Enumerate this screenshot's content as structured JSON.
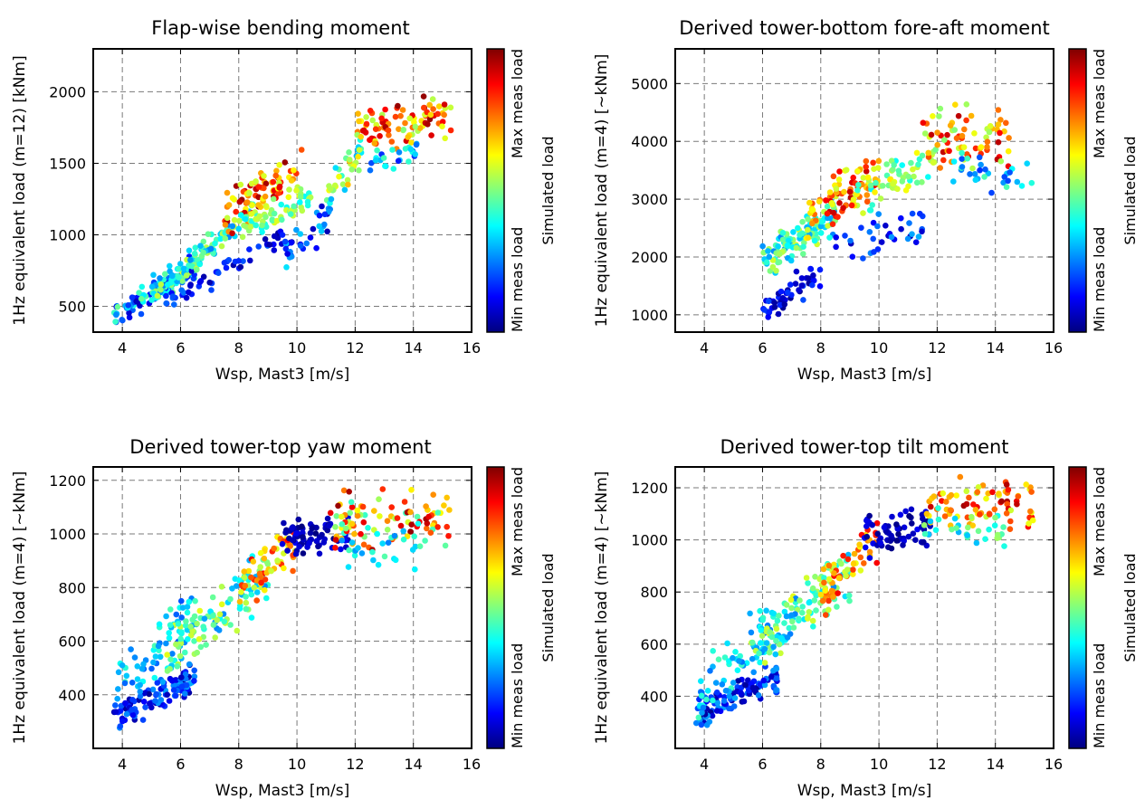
{
  "colors": {
    "colormap": [
      "#00007f",
      "#0000ff",
      "#007fff",
      "#00ffff",
      "#7fff7f",
      "#ffff00",
      "#ff7f00",
      "#ff0000",
      "#7f0000"
    ],
    "grid": "#7a7a7a"
  },
  "chart_data": [
    {
      "type": "scatter",
      "title": "Flap-wise bending moment",
      "xlabel": "Wsp, Mast3 [m/s]",
      "ylabel": "1Hz equivalent load (m=12) [kNm]",
      "xlim": [
        3,
        16
      ],
      "ylim": [
        320,
        2300
      ],
      "xticks": [
        4,
        6,
        8,
        10,
        12,
        14,
        16
      ],
      "yticks": [
        500,
        1000,
        1500,
        2000
      ],
      "grid": true,
      "colorbar": {
        "label": "Simulated load",
        "top_label": "Max meas load",
        "bottom_label": "Min meas load"
      },
      "clusters": [
        {
          "x_range": [
            3.7,
            6.5
          ],
          "y_at_x_lo": 430,
          "y_at_x_hi": 760,
          "spread": 140,
          "c_lo": 0.05,
          "c_hi": 0.55,
          "n": 110
        },
        {
          "x_range": [
            5.0,
            8.5
          ],
          "y_at_x_lo": 600,
          "y_at_x_hi": 1150,
          "spread": 170,
          "c_lo": 0.25,
          "c_hi": 0.6,
          "n": 110
        },
        {
          "x_range": [
            5.5,
            9.5
          ],
          "y_at_x_lo": 520,
          "y_at_x_hi": 1000,
          "spread": 120,
          "c_lo": 0.02,
          "c_hi": 0.25,
          "n": 50
        },
        {
          "x_range": [
            7.5,
            10.2
          ],
          "y_at_x_lo": 1150,
          "y_at_x_hi": 1450,
          "spread": 260,
          "c_lo": 0.55,
          "c_hi": 0.98,
          "n": 90
        },
        {
          "x_range": [
            8.0,
            10.5
          ],
          "y_at_x_lo": 1050,
          "y_at_x_hi": 1250,
          "spread": 180,
          "c_lo": 0.35,
          "c_hi": 0.6,
          "n": 60
        },
        {
          "x_range": [
            9.5,
            11.2
          ],
          "y_at_x_lo": 850,
          "y_at_x_hi": 1150,
          "spread": 200,
          "c_lo": 0.05,
          "c_hi": 0.35,
          "n": 35
        },
        {
          "x_range": [
            11.0,
            12.3
          ],
          "y_at_x_lo": 1250,
          "y_at_x_hi": 1650,
          "spread": 220,
          "c_lo": 0.3,
          "c_hi": 0.7,
          "n": 35
        },
        {
          "x_range": [
            12.0,
            15.3
          ],
          "y_at_x_lo": 1750,
          "y_at_x_hi": 1800,
          "spread": 260,
          "c_lo": 0.5,
          "c_hi": 0.98,
          "n": 90
        },
        {
          "x_range": [
            12.5,
            14.3
          ],
          "y_at_x_lo": 1500,
          "y_at_x_hi": 1600,
          "spread": 200,
          "c_lo": 0.15,
          "c_hi": 0.45,
          "n": 25
        }
      ]
    },
    {
      "type": "scatter",
      "title": "Derived tower-bottom fore-aft moment",
      "xlabel": "Wsp, Mast3 [m/s]",
      "ylabel": "1Hz equivalent load (m=4) [~kNm]",
      "xlim": [
        3,
        16
      ],
      "ylim": [
        700,
        5600
      ],
      "xticks": [
        4,
        6,
        8,
        10,
        12,
        14,
        16
      ],
      "yticks": [
        1000,
        2000,
        3000,
        4000,
        5000
      ],
      "grid": true,
      "colorbar": {
        "label": "Simulated load",
        "top_label": "Max meas load",
        "bottom_label": "Min meas load"
      },
      "clusters": [
        {
          "x_range": [
            6.0,
            8.0
          ],
          "y_at_x_lo": 1100,
          "y_at_x_hi": 1700,
          "spread": 400,
          "c_lo": 0.02,
          "c_hi": 0.2,
          "n": 50
        },
        {
          "x_range": [
            6.0,
            8.5
          ],
          "y_at_x_lo": 1900,
          "y_at_x_hi": 2700,
          "spread": 500,
          "c_lo": 0.25,
          "c_hi": 0.6,
          "n": 110
        },
        {
          "x_range": [
            7.5,
            10.0
          ],
          "y_at_x_lo": 2700,
          "y_at_x_hi": 3400,
          "spread": 700,
          "c_lo": 0.55,
          "c_hi": 0.95,
          "n": 90
        },
        {
          "x_range": [
            8.5,
            11.5
          ],
          "y_at_x_lo": 2200,
          "y_at_x_hi": 2600,
          "spread": 600,
          "c_lo": 0.05,
          "c_hi": 0.3,
          "n": 35
        },
        {
          "x_range": [
            9.0,
            12.0
          ],
          "y_at_x_lo": 3000,
          "y_at_x_hi": 3700,
          "spread": 600,
          "c_lo": 0.35,
          "c_hi": 0.65,
          "n": 60
        },
        {
          "x_range": [
            11.5,
            14.5
          ],
          "y_at_x_lo": 4100,
          "y_at_x_hi": 4000,
          "spread": 900,
          "c_lo": 0.5,
          "c_hi": 0.95,
          "n": 70
        },
        {
          "x_range": [
            12.5,
            15.3
          ],
          "y_at_x_lo": 3600,
          "y_at_x_hi": 3200,
          "spread": 600,
          "c_lo": 0.15,
          "c_hi": 0.45,
          "n": 30
        }
      ]
    },
    {
      "type": "scatter",
      "title": "Derived tower-top yaw moment",
      "xlabel": "Wsp, Mast3 [m/s]",
      "ylabel": "1Hz equivalent load (m=4) [~kNm]",
      "xlim": [
        3,
        16
      ],
      "ylim": [
        200,
        1250
      ],
      "xticks": [
        4,
        6,
        8,
        10,
        12,
        14,
        16
      ],
      "yticks": [
        400,
        600,
        800,
        1000,
        1200
      ],
      "grid": true,
      "colorbar": {
        "label": "Simulated load",
        "top_label": "Max meas load",
        "bottom_label": "Min meas load"
      },
      "clusters": [
        {
          "x_range": [
            3.7,
            6.5
          ],
          "y_at_x_lo": 320,
          "y_at_x_hi": 470,
          "spread": 100,
          "c_lo": 0.02,
          "c_hi": 0.3,
          "n": 110
        },
        {
          "x_range": [
            3.8,
            6.5
          ],
          "y_at_x_lo": 420,
          "y_at_x_hi": 700,
          "spread": 200,
          "c_lo": 0.2,
          "c_hi": 0.45,
          "n": 60
        },
        {
          "x_range": [
            5.5,
            9.0
          ],
          "y_at_x_lo": 550,
          "y_at_x_hi": 850,
          "spread": 180,
          "c_lo": 0.25,
          "c_hi": 0.6,
          "n": 120
        },
        {
          "x_range": [
            8.0,
            10.0
          ],
          "y_at_x_lo": 780,
          "y_at_x_hi": 980,
          "spread": 160,
          "c_lo": 0.55,
          "c_hi": 0.9,
          "n": 60
        },
        {
          "x_range": [
            9.5,
            11.8
          ],
          "y_at_x_lo": 990,
          "y_at_x_hi": 1000,
          "spread": 120,
          "c_lo": 0.0,
          "c_hi": 0.12,
          "n": 70
        },
        {
          "x_range": [
            11.0,
            15.3
          ],
          "y_at_x_lo": 1050,
          "y_at_x_hi": 1050,
          "spread": 200,
          "c_lo": 0.4,
          "c_hi": 0.98,
          "n": 90
        },
        {
          "x_range": [
            11.5,
            14.5
          ],
          "y_at_x_lo": 950,
          "y_at_x_hi": 950,
          "spread": 160,
          "c_lo": 0.25,
          "c_hi": 0.5,
          "n": 30
        }
      ]
    },
    {
      "type": "scatter",
      "title": "Derived tower-top tilt moment",
      "xlabel": "Wsp, Mast3 [m/s]",
      "ylabel": "1Hz equivalent load (m=4) [~kNm]",
      "xlim": [
        3,
        16
      ],
      "ylim": [
        200,
        1280
      ],
      "xticks": [
        4,
        6,
        8,
        10,
        12,
        14,
        16
      ],
      "yticks": [
        400,
        600,
        800,
        1000,
        1200
      ],
      "grid": true,
      "colorbar": {
        "label": "Simulated load",
        "top_label": "Max meas load",
        "bottom_label": "Min meas load"
      },
      "clusters": [
        {
          "x_range": [
            3.7,
            6.5
          ],
          "y_at_x_lo": 330,
          "y_at_x_hi": 480,
          "spread": 100,
          "c_lo": 0.02,
          "c_hi": 0.3,
          "n": 110
        },
        {
          "x_range": [
            3.8,
            6.5
          ],
          "y_at_x_lo": 420,
          "y_at_x_hi": 700,
          "spread": 200,
          "c_lo": 0.2,
          "c_hi": 0.45,
          "n": 60
        },
        {
          "x_range": [
            5.5,
            9.0
          ],
          "y_at_x_lo": 560,
          "y_at_x_hi": 880,
          "spread": 180,
          "c_lo": 0.25,
          "c_hi": 0.6,
          "n": 120
        },
        {
          "x_range": [
            8.0,
            10.0
          ],
          "y_at_x_lo": 800,
          "y_at_x_hi": 1020,
          "spread": 160,
          "c_lo": 0.55,
          "c_hi": 0.9,
          "n": 60
        },
        {
          "x_range": [
            9.5,
            11.8
          ],
          "y_at_x_lo": 1020,
          "y_at_x_hi": 1040,
          "spread": 120,
          "c_lo": 0.0,
          "c_hi": 0.12,
          "n": 70
        },
        {
          "x_range": [
            11.5,
            15.3
          ],
          "y_at_x_lo": 1150,
          "y_at_x_hi": 1120,
          "spread": 160,
          "c_lo": 0.55,
          "c_hi": 0.98,
          "n": 80
        },
        {
          "x_range": [
            11.5,
            14.5
          ],
          "y_at_x_lo": 1050,
          "y_at_x_hi": 1020,
          "spread": 120,
          "c_lo": 0.3,
          "c_hi": 0.55,
          "n": 30
        }
      ]
    }
  ]
}
